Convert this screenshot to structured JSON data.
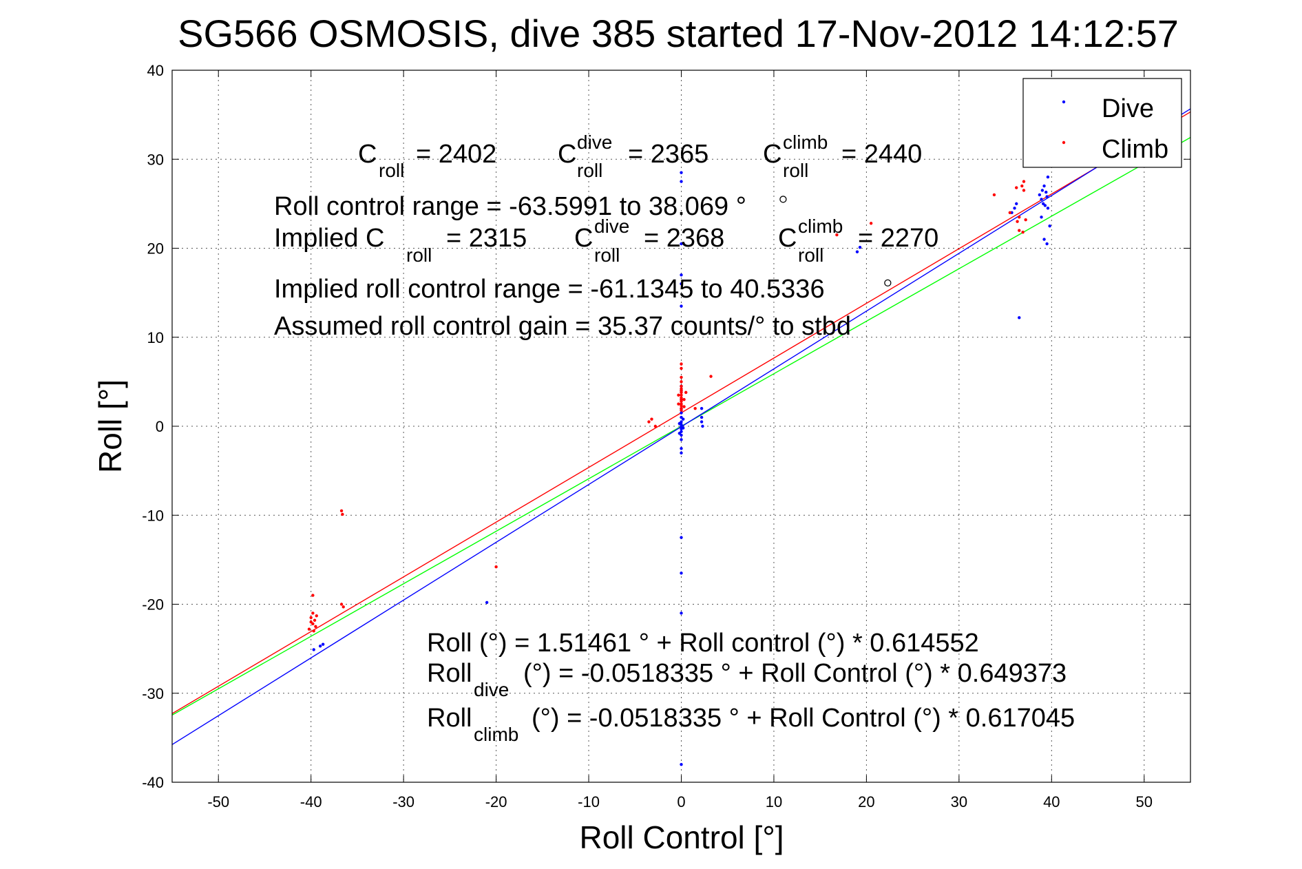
{
  "chart_data": {
    "type": "scatter",
    "title": "SG566 OSMOSIS, dive 385 started 17-Nov-2012 14:12:57",
    "xlabel": "Roll Control [°]",
    "ylabel": "Roll [°]",
    "xlim": [
      -55,
      55
    ],
    "ylim": [
      -40,
      40
    ],
    "xticks": [
      -50,
      -40,
      -30,
      -20,
      -10,
      0,
      10,
      20,
      30,
      40,
      50
    ],
    "yticks": [
      -40,
      -30,
      -20,
      -10,
      0,
      10,
      20,
      30,
      40
    ],
    "grid": true,
    "legend_position": "top-right",
    "series": [
      {
        "name": "Dive",
        "color": "#0000ff",
        "points": [
          [
            0,
            28.5
          ],
          [
            0,
            27.5
          ],
          [
            0,
            20.5
          ],
          [
            0,
            17
          ],
          [
            0,
            16
          ],
          [
            0,
            13.5
          ],
          [
            0,
            4.5
          ],
          [
            0,
            4
          ],
          [
            0,
            3
          ],
          [
            0,
            2
          ],
          [
            0,
            1.5
          ],
          [
            0,
            1
          ],
          [
            0,
            0.5
          ],
          [
            0,
            0.2
          ],
          [
            0,
            0
          ],
          [
            0,
            -0.3
          ],
          [
            0,
            -0.6
          ],
          [
            0,
            -1
          ],
          [
            0,
            -1.5
          ],
          [
            0,
            -2.5
          ],
          [
            0,
            -3
          ],
          [
            0,
            -12.5
          ],
          [
            0,
            -16.5
          ],
          [
            0,
            -21
          ],
          [
            0,
            -38
          ],
          [
            -0.2,
            0.3
          ],
          [
            0.2,
            -0.2
          ],
          [
            -0.2,
            -0.8
          ],
          [
            0.2,
            0.8
          ],
          [
            2.2,
            2
          ],
          [
            2.2,
            1
          ],
          [
            2.2,
            0.5
          ],
          [
            2.3,
            0
          ],
          [
            -21,
            -19.8
          ],
          [
            -39.7,
            -25.1
          ],
          [
            -39,
            -24.7
          ],
          [
            -38.7,
            -24.5
          ],
          [
            19,
            19.6
          ],
          [
            19.3,
            20.1
          ],
          [
            35.7,
            24
          ],
          [
            36,
            24.5
          ],
          [
            36.2,
            25
          ],
          [
            36.5,
            12.2
          ],
          [
            38.7,
            26
          ],
          [
            38.9,
            25.5
          ],
          [
            39,
            26.5
          ],
          [
            39.1,
            25
          ],
          [
            39.2,
            27
          ],
          [
            39.3,
            24.8
          ],
          [
            39.4,
            26.3
          ],
          [
            39.5,
            25.8
          ],
          [
            39.6,
            28
          ],
          [
            39.8,
            22.5
          ],
          [
            39.2,
            21
          ],
          [
            39.5,
            20.5
          ],
          [
            38.9,
            23.5
          ],
          [
            39.6,
            24.5
          ]
        ]
      },
      {
        "name": "Climb",
        "color": "#ff0000",
        "points": [
          [
            0,
            7
          ],
          [
            0,
            6.5
          ],
          [
            0,
            5.5
          ],
          [
            0,
            5
          ],
          [
            0,
            4.5
          ],
          [
            0,
            4.2
          ],
          [
            0,
            4
          ],
          [
            0,
            3.8
          ],
          [
            0,
            3.5
          ],
          [
            0,
            3.2
          ],
          [
            0,
            3
          ],
          [
            0,
            2.8
          ],
          [
            0,
            2.5
          ],
          [
            0,
            2.3
          ],
          [
            0,
            2
          ],
          [
            0,
            1.8
          ],
          [
            -0.3,
            3.5
          ],
          [
            0.3,
            3
          ],
          [
            -0.3,
            2.5
          ],
          [
            0.3,
            2.2
          ],
          [
            0.5,
            3.8
          ],
          [
            1.5,
            2
          ],
          [
            3.2,
            5.6
          ],
          [
            -3.5,
            0.5
          ],
          [
            -3.2,
            0.8
          ],
          [
            -2.8,
            0
          ],
          [
            -20,
            -15.8
          ],
          [
            -36.7,
            -9.5
          ],
          [
            -36.6,
            -9.9
          ],
          [
            -36.7,
            -20
          ],
          [
            -36.5,
            -20.3
          ],
          [
            -39.8,
            -19
          ],
          [
            -39.8,
            -21
          ],
          [
            -40,
            -21.5
          ],
          [
            -39.6,
            -21.8
          ],
          [
            -39.8,
            -22.2
          ],
          [
            -39.5,
            -22.5
          ],
          [
            -40.2,
            -22.8
          ],
          [
            -39.7,
            -23
          ],
          [
            -39.4,
            -21.3
          ],
          [
            -40,
            -22
          ],
          [
            20.5,
            22.8
          ],
          [
            16.8,
            21.5
          ],
          [
            33.8,
            26
          ],
          [
            35.5,
            24
          ],
          [
            36.3,
            23
          ],
          [
            36.5,
            22
          ],
          [
            36.5,
            23.5
          ],
          [
            36.8,
            27
          ],
          [
            37,
            26.5
          ],
          [
            37,
            27.5
          ],
          [
            37.2,
            23.2
          ],
          [
            36.9,
            21.8
          ],
          [
            36.2,
            26.8
          ]
        ]
      }
    ],
    "fit_lines": [
      {
        "color": "#ff0000",
        "intercept": 1.51461,
        "slope": 0.614552
      },
      {
        "color": "#00ff00",
        "intercept": 0,
        "slope": 0.59
      },
      {
        "color": "#0000ff",
        "intercept": -0.0518335,
        "slope": 0.649373
      }
    ],
    "circle_markers": [
      [
        11,
        25.5
      ],
      [
        22.3,
        16.1
      ]
    ],
    "annotations": {
      "c_roll_label": "C",
      "c_roll_sub": "roll",
      "c_roll_value": "= 2402",
      "c_dive_sup": "dive",
      "c_dive_value": "= 2365",
      "c_climb_sup": "climb",
      "c_climb_value": "= 2440",
      "roll_range": "Roll control range = -63.5991 to 38.069 °",
      "implied_prefix": "Implied C",
      "implied_value": "= 2315",
      "implied_dive_value": "= 2368",
      "implied_climb_value": "= 2270",
      "implied_range": "Implied roll control range = -61.1345 to 40.5336",
      "gain": "Assumed roll control gain = 35.37 counts/° to stbd",
      "eq1": "Roll (°) = 1.51461 ° + Roll control (°) * 0.614552",
      "eq2_prefix": "Roll",
      "eq2_sub": "dive",
      "eq2_rest": "(°) = -0.0518335 ° + Roll Control (°) * 0.649373",
      "eq3_prefix": "Roll",
      "eq3_sub": "climb",
      "eq3_rest": "(°) = -0.0518335 ° + Roll Control (°) * 0.617045"
    }
  }
}
